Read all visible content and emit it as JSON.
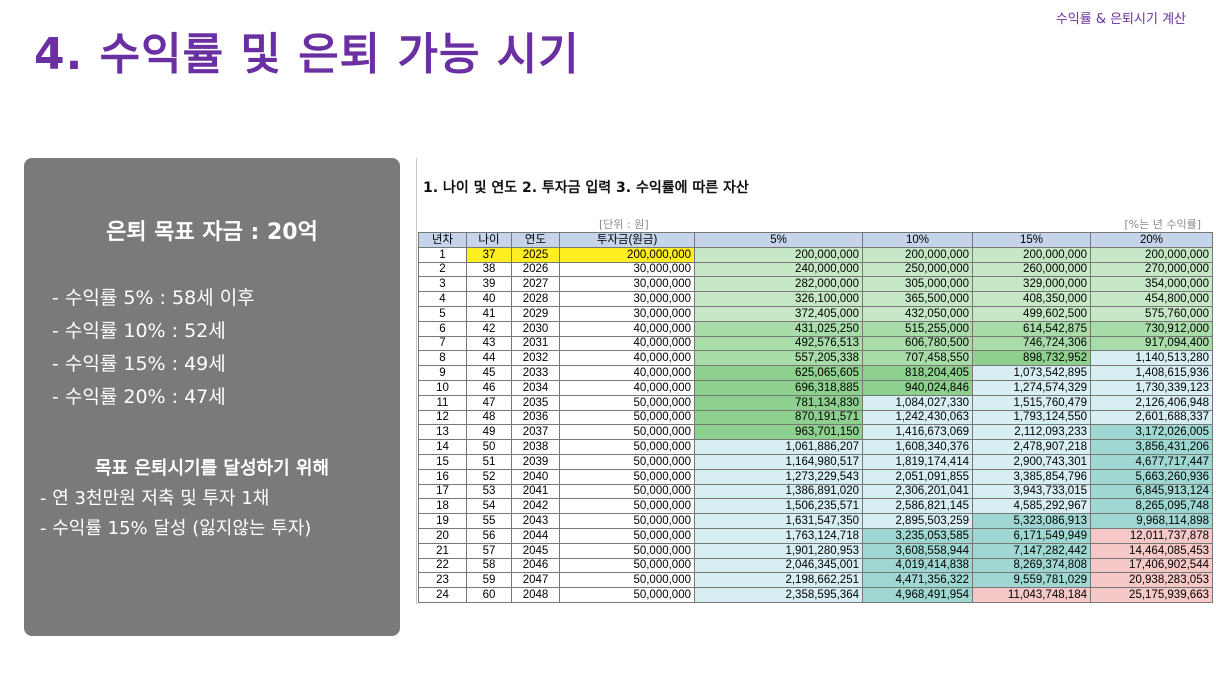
{
  "header_note": "수익률 & 은퇴시기 계산",
  "title": "4. 수익률 및 은퇴 가능 시기",
  "panel": {
    "goal": "은퇴 목표 자금 : 20억",
    "rates": [
      "- 수익률   5% : 58세 이후",
      "- 수익률 10% : 52세",
      "- 수익률 15% : 49세",
      "- 수익률 20% : 47세"
    ],
    "plan_heading": "목표 은퇴시기를 달성하기 위해",
    "plan": [
      "- 연 3천만원 저축 및 투자 1채",
      "- 수익률 15% 달성 (잃지않는 투자)"
    ]
  },
  "sheet": {
    "steps": "1. 나이 및 연도    2. 투자금 입력    3. 수익률에 따른 자산",
    "unit_left": "[단위 : 원]",
    "unit_right": "[%는 년 수익률]",
    "headers": [
      "년차",
      "나이",
      "연도",
      "투자금(원금)",
      "5%",
      "10%",
      "15%",
      "20%"
    ],
    "rows": [
      [
        "1",
        "37",
        "2025",
        "200,000,000",
        "200,000,000",
        "200,000,000",
        "200,000,000",
        "200,000,000"
      ],
      [
        "2",
        "38",
        "2026",
        "30,000,000",
        "240,000,000",
        "250,000,000",
        "260,000,000",
        "270,000,000"
      ],
      [
        "3",
        "39",
        "2027",
        "30,000,000",
        "282,000,000",
        "305,000,000",
        "329,000,000",
        "354,000,000"
      ],
      [
        "4",
        "40",
        "2028",
        "30,000,000",
        "326,100,000",
        "365,500,000",
        "408,350,000",
        "454,800,000"
      ],
      [
        "5",
        "41",
        "2029",
        "30,000,000",
        "372,405,000",
        "432,050,000",
        "499,602,500",
        "575,760,000"
      ],
      [
        "6",
        "42",
        "2030",
        "40,000,000",
        "431,025,250",
        "515,255,000",
        "614,542,875",
        "730,912,000"
      ],
      [
        "7",
        "43",
        "2031",
        "40,000,000",
        "492,576,513",
        "606,780,500",
        "746,724,306",
        "917,094,400"
      ],
      [
        "8",
        "44",
        "2032",
        "40,000,000",
        "557,205,338",
        "707,458,550",
        "898,732,952",
        "1,140,513,280"
      ],
      [
        "9",
        "45",
        "2033",
        "40,000,000",
        "625,065,605",
        "818,204,405",
        "1,073,542,895",
        "1,408,615,936"
      ],
      [
        "10",
        "46",
        "2034",
        "40,000,000",
        "696,318,885",
        "940,024,846",
        "1,274,574,329",
        "1,730,339,123"
      ],
      [
        "11",
        "47",
        "2035",
        "50,000,000",
        "781,134,830",
        "1,084,027,330",
        "1,515,760,479",
        "2,126,406,948"
      ],
      [
        "12",
        "48",
        "2036",
        "50,000,000",
        "870,191,571",
        "1,242,430,063",
        "1,793,124,550",
        "2,601,688,337"
      ],
      [
        "13",
        "49",
        "2037",
        "50,000,000",
        "963,701,150",
        "1,416,673,069",
        "2,112,093,233",
        "3,172,026,005"
      ],
      [
        "14",
        "50",
        "2038",
        "50,000,000",
        "1,061,886,207",
        "1,608,340,376",
        "2,478,907,218",
        "3,856,431,206"
      ],
      [
        "15",
        "51",
        "2039",
        "50,000,000",
        "1,164,980,517",
        "1,819,174,414",
        "2,900,743,301",
        "4,677,717,447"
      ],
      [
        "16",
        "52",
        "2040",
        "50,000,000",
        "1,273,229,543",
        "2,051,091,855",
        "3,385,854,796",
        "5,663,260,936"
      ],
      [
        "17",
        "53",
        "2041",
        "50,000,000",
        "1,386,891,020",
        "2,306,201,041",
        "3,943,733,015",
        "6,845,913,124"
      ],
      [
        "18",
        "54",
        "2042",
        "50,000,000",
        "1,506,235,571",
        "2,586,821,145",
        "4,585,292,967",
        "8,265,095,748"
      ],
      [
        "19",
        "55",
        "2043",
        "50,000,000",
        "1,631,547,350",
        "2,895,503,259",
        "5,323,086,913",
        "9,968,114,898"
      ],
      [
        "20",
        "56",
        "2044",
        "50,000,000",
        "1,763,124,718",
        "3,235,053,585",
        "6,171,549,949",
        "12,011,737,878"
      ],
      [
        "21",
        "57",
        "2045",
        "50,000,000",
        "1,901,280,953",
        "3,608,558,944",
        "7,147,282,442",
        "14,464,085,453"
      ],
      [
        "22",
        "58",
        "2046",
        "50,000,000",
        "2,046,345,001",
        "4,019,414,838",
        "8,269,374,808",
        "17,406,902,544"
      ],
      [
        "23",
        "59",
        "2047",
        "50,000,000",
        "2,198,662,251",
        "4,471,356,322",
        "9,559,781,029",
        "20,938,283,053"
      ],
      [
        "24",
        "60",
        "2048",
        "50,000,000",
        "2,358,595,364",
        "4,968,491,954",
        "11,043,748,184",
        "25,175,939,663"
      ]
    ],
    "colors": {
      "highlight": "#ffee22",
      "green_dark": "#8ed08e",
      "green_mid": "#a8dca8",
      "green_light": "#c6e8c6",
      "teal": "#9fd8d3",
      "light_blue": "#d7eef2",
      "pink": "#f6c8c8",
      "header": "#c5d4ea",
      "title": "#6a2fa0"
    }
  }
}
